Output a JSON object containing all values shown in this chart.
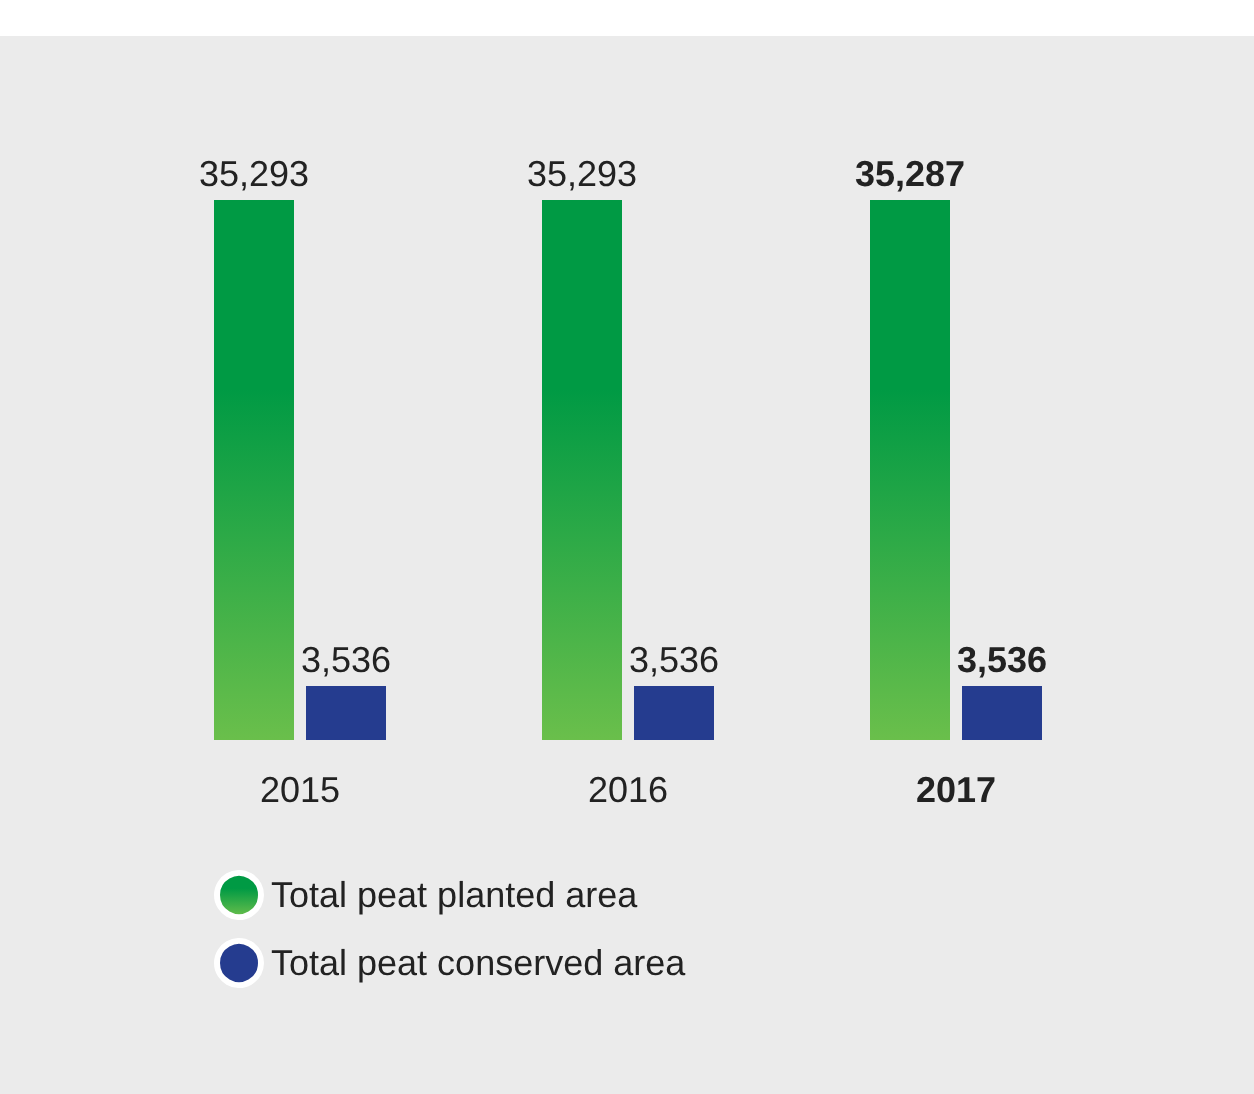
{
  "chart_data": {
    "type": "bar",
    "categories": [
      "2015",
      "2016",
      "2017"
    ],
    "series": [
      {
        "name": "Total peat planted area",
        "color": "#009a44",
        "values": [
          35293,
          35293,
          35287
        ],
        "value_labels": [
          "35,293",
          "35,293",
          "35,287"
        ]
      },
      {
        "name": "Total peat conserved area",
        "color": "#253c8f",
        "values": [
          3536,
          3536,
          3536
        ],
        "value_labels": [
          "3,536",
          "3,536",
          "3,536"
        ]
      }
    ],
    "legend": "bottom left"
  }
}
